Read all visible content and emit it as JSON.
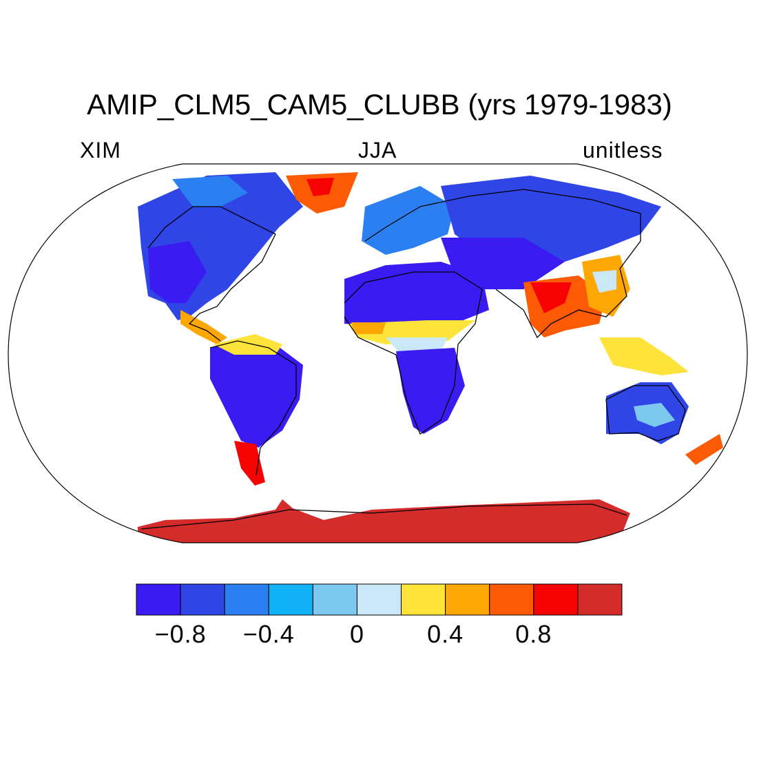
{
  "title": "AMIP_CLM5_CAM5_CLUBB (yrs 1979-1983)",
  "labels": {
    "left": "XIM",
    "center": "JJA",
    "right": "unitless"
  },
  "colorbar": {
    "colors": [
      "#3a1bf2",
      "#2f45e6",
      "#2b7ff0",
      "#11b2f6",
      "#7cc8ef",
      "#cbe8f8",
      "#fde33a",
      "#fca704",
      "#fc5a04",
      "#f70202",
      "#d42b2b"
    ],
    "ticks": [
      "−0.8",
      "−0.4",
      "0",
      "0.4",
      "0.8"
    ],
    "tick_values": [
      -0.8,
      -0.4,
      0,
      0.4,
      0.8
    ],
    "range": [
      -1.0,
      1.2
    ]
  },
  "colors": {
    "land_neg": "#3a1bf2",
    "land_mid": "#2b7ff0",
    "antarctica": "#d42b2b",
    "coast": "#000000"
  }
}
